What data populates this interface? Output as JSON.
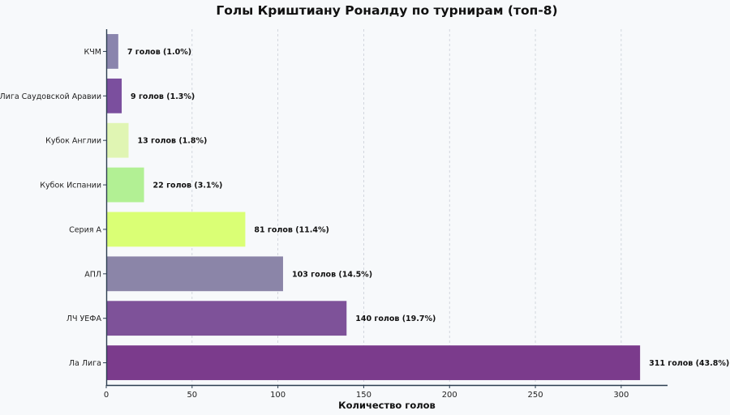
{
  "chart_data": {
    "type": "bar",
    "orientation": "horizontal",
    "title": "Голы Криштиану Роналду по турнирам (топ-8)",
    "xlabel": "Количество голов",
    "ylabel": "",
    "xlim": [
      0,
      327
    ],
    "xticks": [
      0,
      50,
      100,
      150,
      200,
      250,
      300
    ],
    "grid": "vertical-dashed",
    "categories": [
      "Ла Лига",
      "ЛЧ УЕФА",
      "АПЛ",
      "Серия А",
      "Кубок Испании",
      "Кубок Англии",
      "Лига Саудовской Аравии",
      "КЧМ"
    ],
    "values": [
      311,
      140,
      103,
      81,
      22,
      13,
      9,
      7
    ],
    "data_labels": [
      "311 голов (43.8%)",
      "140 голов (19.7%)",
      "103 голов (14.5%)",
      "81 голов (11.4%)",
      "22 голов (3.1%)",
      "13 голов (1.8%)",
      "9 голов (1.3%)",
      "7 голов (1.0%)"
    ],
    "colors": [
      "#7b3b8c",
      "#7e5299",
      "#8b85a8",
      "#daff75",
      "#b2f094",
      "#e0f5b3",
      "#7b4f9e",
      "#8a85ad"
    ]
  }
}
